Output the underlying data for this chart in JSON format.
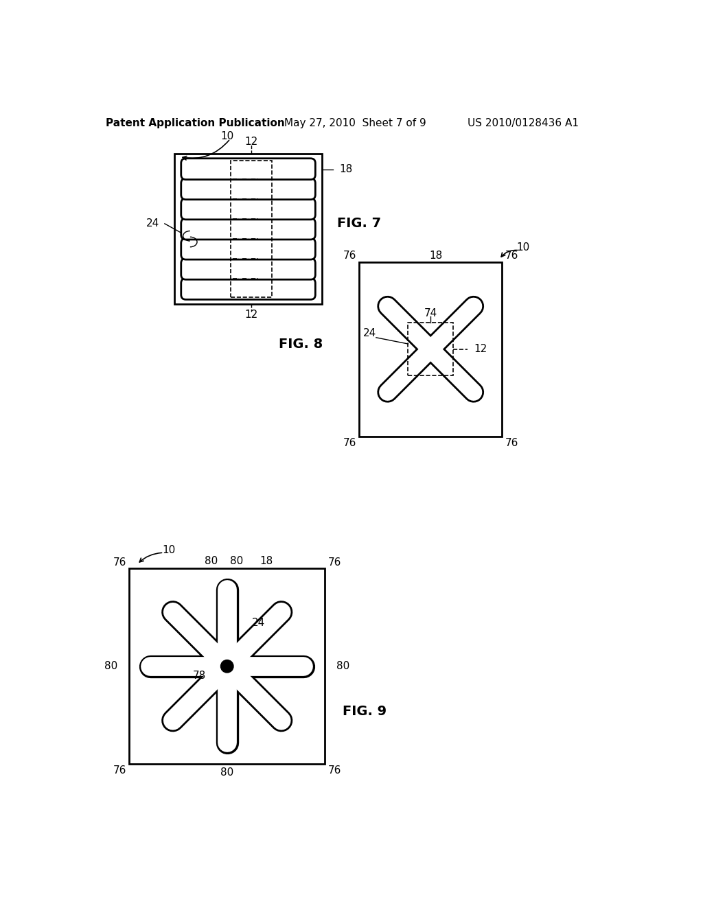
{
  "bg_color": "#ffffff",
  "text_color": "#000000",
  "header_left": "Patent Application Publication",
  "header_mid": "May 27, 2010  Sheet 7 of 9",
  "header_right": "US 2010/0128436 A1",
  "fig7_label": "FIG. 7",
  "fig8_label": "FIG. 8",
  "fig9_label": "FIG. 9",
  "lw_outer": 2.0,
  "lw_bar": 2.0,
  "lw_dash": 1.2,
  "lw_thin": 1.0
}
